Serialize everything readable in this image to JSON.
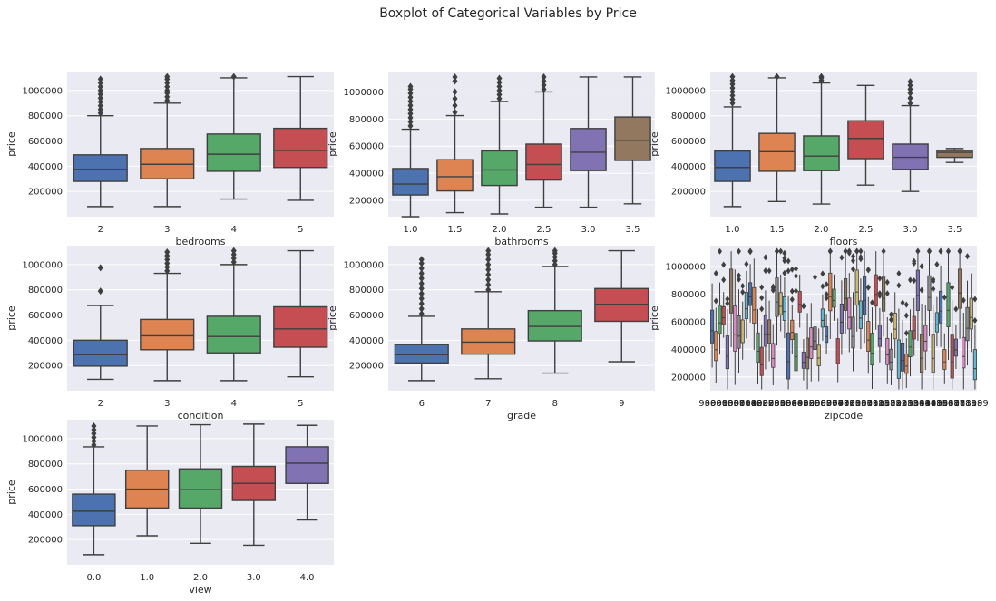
{
  "figure_title": "Boxplot of Categorical Variables by Price",
  "chart_data": [
    {
      "type": "boxplot",
      "xlabel": "bedrooms",
      "ylabel": "price",
      "ylim": [
        0,
        1150000
      ],
      "yticks": [
        200000,
        400000,
        600000,
        800000,
        1000000
      ],
      "categories": [
        "2",
        "3",
        "4",
        "5"
      ],
      "boxes": [
        {
          "whislo": 80000,
          "q1": 280000,
          "med": 375000,
          "q3": 490000,
          "whishi": 800000,
          "fliers": [
            820000,
            850000,
            880000,
            910000,
            940000,
            970000,
            1000000,
            1030000,
            1060000,
            1090000
          ]
        },
        {
          "whislo": 80000,
          "q1": 300000,
          "med": 415000,
          "q3": 540000,
          "whishi": 900000,
          "fliers": [
            920000,
            950000,
            980000,
            1000000,
            1030000,
            1060000,
            1090000,
            1110000
          ]
        },
        {
          "whislo": 140000,
          "q1": 360000,
          "med": 495000,
          "q3": 655000,
          "whishi": 1100000,
          "fliers": [
            1110000
          ]
        },
        {
          "whislo": 130000,
          "q1": 390000,
          "med": 525000,
          "q3": 700000,
          "whishi": 1110000,
          "fliers": []
        }
      ]
    },
    {
      "type": "boxplot",
      "xlabel": "bathrooms",
      "ylabel": "price",
      "ylim": [
        80000,
        1150000
      ],
      "yticks": [
        200000,
        400000,
        600000,
        800000,
        1000000
      ],
      "categories": [
        "1.0",
        "1.5",
        "2.0",
        "2.5",
        "3.0",
        "3.5"
      ],
      "boxes": [
        {
          "whislo": 80000,
          "q1": 240000,
          "med": 320000,
          "q3": 435000,
          "whishi": 725000,
          "fliers": [
            750000,
            780000,
            810000,
            840000,
            870000,
            900000,
            930000,
            960000,
            990000,
            1020000,
            1040000
          ]
        },
        {
          "whislo": 110000,
          "q1": 270000,
          "med": 375000,
          "q3": 500000,
          "whishi": 825000,
          "fliers": [
            850000,
            900000,
            950000,
            1000000,
            1080000,
            1110000
          ]
        },
        {
          "whislo": 100000,
          "q1": 310000,
          "med": 425000,
          "q3": 565000,
          "whishi": 930000,
          "fliers": [
            950000,
            980000,
            1010000,
            1040000,
            1070000,
            1100000
          ]
        },
        {
          "whislo": 150000,
          "q1": 350000,
          "med": 465000,
          "q3": 615000,
          "whishi": 1000000,
          "fliers": [
            1020000,
            1050000,
            1080000,
            1110000
          ]
        },
        {
          "whislo": 150000,
          "q1": 420000,
          "med": 555000,
          "q3": 730000,
          "whishi": 1110000,
          "fliers": []
        },
        {
          "whislo": 175000,
          "q1": 495000,
          "med": 640000,
          "q3": 815000,
          "whishi": 1110000,
          "fliers": []
        }
      ]
    },
    {
      "type": "boxplot",
      "xlabel": "floors",
      "ylabel": "price",
      "ylim": [
        0,
        1150000
      ],
      "yticks": [
        200000,
        400000,
        600000,
        800000,
        1000000
      ],
      "categories": [
        "1.0",
        "1.5",
        "2.0",
        "2.5",
        "3.0",
        "3.5"
      ],
      "boxes": [
        {
          "whislo": 80000,
          "q1": 280000,
          "med": 390000,
          "q3": 520000,
          "whishi": 870000,
          "fliers": [
            900000,
            930000,
            960000,
            990000,
            1020000,
            1050000,
            1080000,
            1110000
          ]
        },
        {
          "whislo": 120000,
          "q1": 360000,
          "med": 515000,
          "q3": 660000,
          "whishi": 1100000,
          "fliers": [
            1110000
          ]
        },
        {
          "whislo": 100000,
          "q1": 365000,
          "med": 480000,
          "q3": 640000,
          "whishi": 1060000,
          "fliers": [
            1080000,
            1100000,
            1110000
          ]
        },
        {
          "whislo": 250000,
          "q1": 460000,
          "med": 620000,
          "q3": 760000,
          "whishi": 1040000,
          "fliers": []
        },
        {
          "whislo": 200000,
          "q1": 375000,
          "med": 470000,
          "q3": 575000,
          "whishi": 880000,
          "fliers": [
            900000,
            940000,
            980000,
            1010000,
            1040000,
            1070000
          ]
        },
        {
          "whislo": 430000,
          "q1": 470000,
          "med": 510000,
          "q3": 525000,
          "whishi": 540000,
          "fliers": []
        }
      ]
    },
    {
      "type": "boxplot",
      "xlabel": "condition",
      "ylabel": "price",
      "ylim": [
        0,
        1150000
      ],
      "yticks": [
        200000,
        400000,
        600000,
        800000,
        1000000
      ],
      "categories": [
        "2",
        "3",
        "4",
        "5"
      ],
      "boxes": [
        {
          "whislo": 90000,
          "q1": 195000,
          "med": 285000,
          "q3": 400000,
          "whishi": 675000,
          "fliers": [
            790000,
            975000
          ]
        },
        {
          "whislo": 80000,
          "q1": 325000,
          "med": 435000,
          "q3": 565000,
          "whishi": 930000,
          "fliers": [
            950000,
            980000,
            1010000,
            1040000,
            1070000,
            1100000
          ]
        },
        {
          "whislo": 80000,
          "q1": 300000,
          "med": 430000,
          "q3": 590000,
          "whishi": 1000000,
          "fliers": [
            1020000,
            1050000,
            1080000,
            1110000
          ]
        },
        {
          "whislo": 110000,
          "q1": 345000,
          "med": 490000,
          "q3": 665000,
          "whishi": 1110000,
          "fliers": []
        }
      ]
    },
    {
      "type": "boxplot",
      "xlabel": "grade",
      "ylabel": "price",
      "ylim": [
        0,
        1150000
      ],
      "yticks": [
        200000,
        400000,
        600000,
        800000,
        1000000
      ],
      "categories": [
        "6",
        "7",
        "8",
        "9"
      ],
      "boxes": [
        {
          "whislo": 80000,
          "q1": 220000,
          "med": 285000,
          "q3": 365000,
          "whishi": 590000,
          "fliers": [
            610000,
            650000,
            690000,
            730000,
            770000,
            810000,
            850000,
            890000,
            930000,
            970000,
            1010000,
            1040000
          ]
        },
        {
          "whislo": 95000,
          "q1": 290000,
          "med": 385000,
          "q3": 490000,
          "whishi": 785000,
          "fliers": [
            800000,
            840000,
            880000,
            920000,
            960000,
            1000000,
            1040000,
            1080000,
            1110000
          ]
        },
        {
          "whislo": 140000,
          "q1": 395000,
          "med": 510000,
          "q3": 635000,
          "whishi": 985000,
          "fliers": [
            1000000,
            1030000,
            1060000,
            1090000,
            1110000
          ]
        },
        {
          "whislo": 230000,
          "q1": 550000,
          "med": 685000,
          "q3": 810000,
          "whishi": 1110000,
          "fliers": []
        }
      ]
    },
    {
      "type": "boxplot",
      "xlabel": "zipcode",
      "ylabel": "price",
      "ylim": [
        100000,
        1150000
      ],
      "yticks": [
        200000,
        400000,
        600000,
        800000,
        1000000
      ],
      "categories": [
        "98001",
        "98003",
        "98005",
        "98007",
        "98010",
        "98014",
        "98019",
        "98023",
        "98027",
        "98029",
        "98031",
        "98033",
        "98038",
        "98040",
        "98042",
        "98052",
        "98055",
        "98058",
        "98065",
        "98070",
        "98074",
        "98077",
        "98092",
        "98103",
        "98105",
        "98107",
        "98109",
        "98112",
        "98115",
        "98117",
        "98119",
        "98122",
        "98125",
        "98133",
        "98136",
        "98144",
        "98146",
        "98148",
        "98155",
        "98166",
        "98168",
        "98177",
        "98178",
        "98188",
        "98198",
        "98199"
      ],
      "box_summary": "70 narrow boxes with widely varying medians (about 250000 to 950000) and many high outliers"
    },
    {
      "type": "boxplot",
      "xlabel": "view",
      "ylabel": "price",
      "ylim": [
        0,
        1150000
      ],
      "yticks": [
        200000,
        400000,
        600000,
        800000,
        1000000
      ],
      "categories": [
        "0.0",
        "1.0",
        "2.0",
        "3.0",
        "4.0"
      ],
      "boxes": [
        {
          "whislo": 80000,
          "q1": 310000,
          "med": 425000,
          "q3": 560000,
          "whishi": 935000,
          "fliers": [
            950000,
            980000,
            1010000,
            1040000,
            1070000,
            1100000
          ]
        },
        {
          "whislo": 230000,
          "q1": 450000,
          "med": 600000,
          "q3": 750000,
          "whishi": 1100000,
          "fliers": []
        },
        {
          "whislo": 170000,
          "q1": 450000,
          "med": 595000,
          "q3": 760000,
          "whishi": 1110000,
          "fliers": []
        },
        {
          "whislo": 155000,
          "q1": 510000,
          "med": 645000,
          "q3": 780000,
          "whishi": 1115000,
          "fliers": []
        },
        {
          "whislo": 355000,
          "q1": 645000,
          "med": 805000,
          "q3": 935000,
          "whishi": 1105000,
          "fliers": []
        }
      ]
    }
  ],
  "colors": {
    "background": "#eaeaf2",
    "grid": "#ffffff",
    "line": "#3f3f3f",
    "palette": [
      "#4c72b0",
      "#dd8452",
      "#55a868",
      "#c44e52",
      "#8172b3",
      "#937860",
      "#da8bc3",
      "#8c8c8c",
      "#ccb974",
      "#64b5cd"
    ]
  }
}
